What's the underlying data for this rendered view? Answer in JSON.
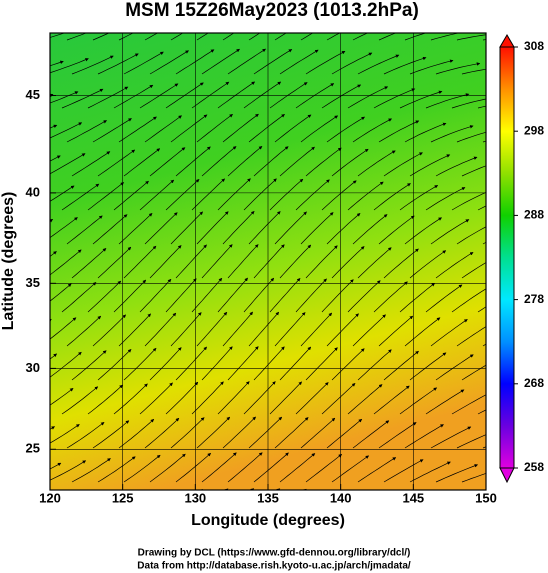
{
  "chart_data": {
    "type": "streamline",
    "title": "MSM 15Z26May2023 (1013.2hPa)",
    "x_label": "Longitude (degrees)",
    "y_label": "Latitude  (degrees)",
    "projection": "mercator",
    "xlim": [
      120,
      150
    ],
    "xticks": [
      120,
      125,
      130,
      135,
      140,
      145,
      150
    ],
    "ylim": [
      22.4,
      48
    ],
    "yticks": [
      25,
      30,
      35,
      40,
      45
    ],
    "grid": true,
    "colorbar": {
      "lim": [
        258,
        308
      ],
      "ticks": [
        258,
        268,
        278,
        288,
        298,
        308
      ],
      "colormap": [
        "#e000e0",
        "#6a00e0",
        "#0000ff",
        "#0090ff",
        "#00e8ff",
        "#00e090",
        "#10d000",
        "#90e000",
        "#ffff00",
        "#ff9000",
        "#ff1000"
      ]
    },
    "footer": [
      "Drawing by DCL (https://www.gfd-dennou.org/library/dcl/)",
      "Data from http://database.rish.kyoto-u.ac.jp/arch/jmadata/"
    ]
  }
}
